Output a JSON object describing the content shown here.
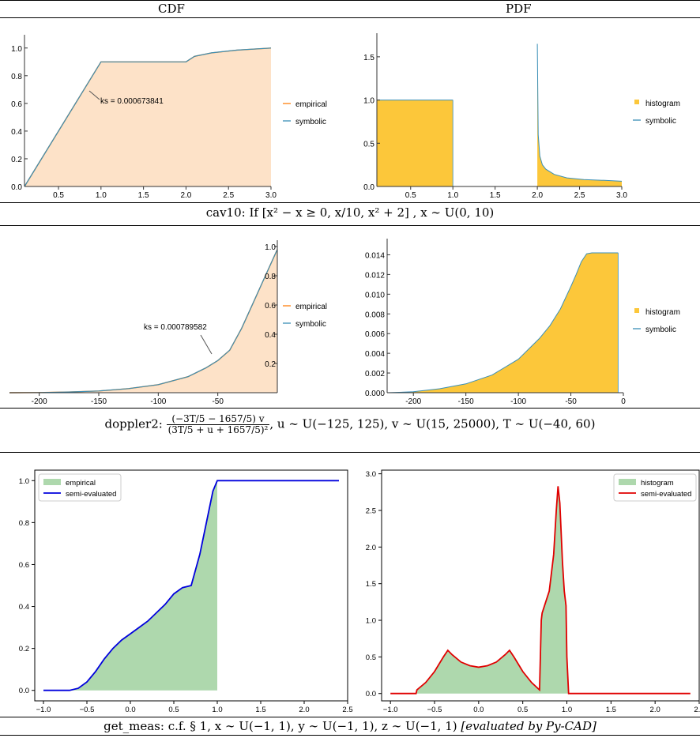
{
  "headers": {
    "cdf": "CDF",
    "pdf": "PDF"
  },
  "captions": {
    "cav10_prefix": "cav10: If ",
    "cav10_math": "[x² − x ≥ 0, x/10, x² + 2] , x ∼ U(0, 10)",
    "doppler2_prefix": "doppler2: ",
    "doppler2_num": "(−3T/5 − 1657/5) v",
    "doppler2_den": "(3T/5 + u + 1657/5)²",
    "doppler2_rest": ", u ∼ U(−125, 125), v ∼ U(15, 25000), T ∼ U(−40, 60)",
    "getmeas_text": "get_meas: c.f. § 1, x ∼ U(−1, 1), y ∼ U(−1, 1), z ∼ U(−1, 1) ",
    "getmeas_italic": "[evaluated by Py-CAD]"
  },
  "colors": {
    "empirical": "#ff7f0e",
    "symbolic": "#3a8fb7",
    "cdf_fill": "#fde2c8",
    "histogram": "#fcc73a",
    "green_fill": "#aed8ad",
    "blue": "#0000dd",
    "red": "#e00000"
  },
  "chart_data": [
    {
      "id": "cav10_cdf",
      "type": "line",
      "x": [
        0.1,
        1.0,
        2.0,
        2.1,
        2.3,
        2.6,
        3.0
      ],
      "y": [
        0.0,
        0.9,
        0.9,
        0.94,
        0.965,
        0.985,
        1.0
      ],
      "xlim": [
        0.1,
        3.0
      ],
      "ylim": [
        0,
        1.05
      ],
      "xticks": [
        0.5,
        1.0,
        1.5,
        2.0,
        2.5,
        3.0
      ],
      "yticks": [
        0.0,
        0.2,
        0.4,
        0.6,
        0.8,
        1.0
      ],
      "annotation": "ks = 0.000673841",
      "legend": [
        "empirical",
        "symbolic"
      ]
    },
    {
      "id": "cav10_pdf",
      "type": "area",
      "segments": [
        {
          "x": [
            0.1,
            1.0
          ],
          "y": [
            1.0,
            1.0
          ]
        },
        {
          "x": [
            2.0,
            2.01,
            2.03,
            2.06,
            2.1,
            2.2,
            2.35,
            2.55,
            2.8,
            3.0
          ],
          "y": [
            1.65,
            0.6,
            0.35,
            0.25,
            0.2,
            0.14,
            0.1,
            0.08,
            0.07,
            0.06
          ]
        }
      ],
      "xlim": [
        0.1,
        3.0
      ],
      "ylim": [
        0,
        1.7
      ],
      "xticks": [
        0.5,
        1.0,
        1.5,
        2.0,
        2.5,
        3.0
      ],
      "yticks": [
        0.0,
        0.5,
        1.0,
        1.5
      ],
      "legend": [
        "histogram",
        "symbolic"
      ]
    },
    {
      "id": "doppler2_cdf",
      "type": "line",
      "x": [
        -225,
        -200,
        -175,
        -150,
        -125,
        -100,
        -75,
        -60,
        -50,
        -40,
        -30,
        -20,
        -10,
        0
      ],
      "y": [
        0.0,
        0.001,
        0.005,
        0.012,
        0.028,
        0.055,
        0.11,
        0.17,
        0.22,
        0.29,
        0.44,
        0.62,
        0.8,
        0.98
      ],
      "xlim": [
        -225,
        0
      ],
      "ylim": [
        0,
        1.0
      ],
      "xticks": [
        -200,
        -150,
        -100,
        -50
      ],
      "yticks": [
        0.2,
        0.4,
        0.6,
        0.8,
        1.0
      ],
      "annotation": "ks = 0.000789582",
      "legend": [
        "empirical",
        "symbolic"
      ]
    },
    {
      "id": "doppler2_pdf",
      "type": "area",
      "x": [
        -225,
        -200,
        -175,
        -150,
        -125,
        -100,
        -80,
        -70,
        -60,
        -50,
        -45,
        -40,
        -35,
        -30,
        -10,
        -5
      ],
      "y": [
        0.0,
        0.0001,
        0.0004,
        0.0009,
        0.0018,
        0.0034,
        0.0055,
        0.0068,
        0.0085,
        0.0108,
        0.012,
        0.0133,
        0.0141,
        0.0142,
        0.0142,
        0.0142
      ],
      "xlim": [
        -225,
        0
      ],
      "ylim": [
        0,
        0.015
      ],
      "xticks": [
        -200,
        -150,
        -100,
        -50,
        0
      ],
      "yticks": [
        0.0,
        0.002,
        0.004,
        0.006,
        0.008,
        0.01,
        0.012,
        0.014
      ],
      "ytick_labels": [
        "0.000",
        "0.002",
        "0.004",
        "0.006",
        "0.008",
        "0.010",
        "0.012",
        "0.014"
      ],
      "legend": [
        "histogram",
        "symbolic"
      ]
    },
    {
      "id": "getmeas_cdf",
      "type": "line",
      "x": [
        -1.0,
        -0.7,
        -0.6,
        -0.5,
        -0.4,
        -0.3,
        -0.2,
        -0.1,
        0.0,
        0.1,
        0.2,
        0.3,
        0.4,
        0.5,
        0.6,
        0.7,
        0.8,
        0.9,
        0.95,
        1.0,
        2.4
      ],
      "y": [
        0.0,
        0.0,
        0.01,
        0.04,
        0.09,
        0.15,
        0.2,
        0.24,
        0.27,
        0.3,
        0.33,
        0.37,
        0.41,
        0.46,
        0.49,
        0.5,
        0.65,
        0.85,
        0.95,
        1.0,
        1.0
      ],
      "fill_until": 1.0,
      "xlim": [
        -1.1,
        2.5
      ],
      "ylim": [
        -0.05,
        1.05
      ],
      "xticks": [
        -1.0,
        -0.5,
        0.0,
        0.5,
        1.0,
        1.5,
        2.0,
        2.5
      ],
      "yticks": [
        0.0,
        0.2,
        0.4,
        0.6,
        0.8,
        1.0
      ],
      "legend": [
        "empirical",
        "semi-evaluated"
      ]
    },
    {
      "id": "getmeas_pdf",
      "type": "line",
      "x": [
        -1.0,
        -0.71,
        -0.7,
        -0.6,
        -0.5,
        -0.4,
        -0.35,
        -0.3,
        -0.2,
        -0.1,
        0.0,
        0.1,
        0.2,
        0.3,
        0.35,
        0.4,
        0.5,
        0.6,
        0.69,
        0.71,
        0.72,
        0.8,
        0.85,
        0.88,
        0.9,
        0.92,
        0.95,
        0.97,
        0.99,
        1.0,
        1.02,
        2.4
      ],
      "y": [
        0.0,
        0.0,
        0.05,
        0.15,
        0.3,
        0.5,
        0.59,
        0.53,
        0.43,
        0.38,
        0.36,
        0.38,
        0.43,
        0.53,
        0.59,
        0.5,
        0.3,
        0.15,
        0.05,
        1.0,
        1.1,
        1.4,
        1.9,
        2.5,
        2.83,
        2.6,
        1.8,
        1.4,
        1.2,
        0.5,
        0.0,
        0.0
      ],
      "fill_range": [
        -0.71,
        1.02
      ],
      "xlim": [
        -1.1,
        2.5
      ],
      "ylim": [
        -0.1,
        3.05
      ],
      "xticks": [
        -1.0,
        -0.5,
        0.0,
        0.5,
        1.0,
        1.5,
        2.0,
        2.5
      ],
      "yticks": [
        0.0,
        0.5,
        1.0,
        1.5,
        2.0,
        2.5,
        3.0
      ],
      "legend": [
        "histogram",
        "semi-evaluated"
      ]
    }
  ]
}
